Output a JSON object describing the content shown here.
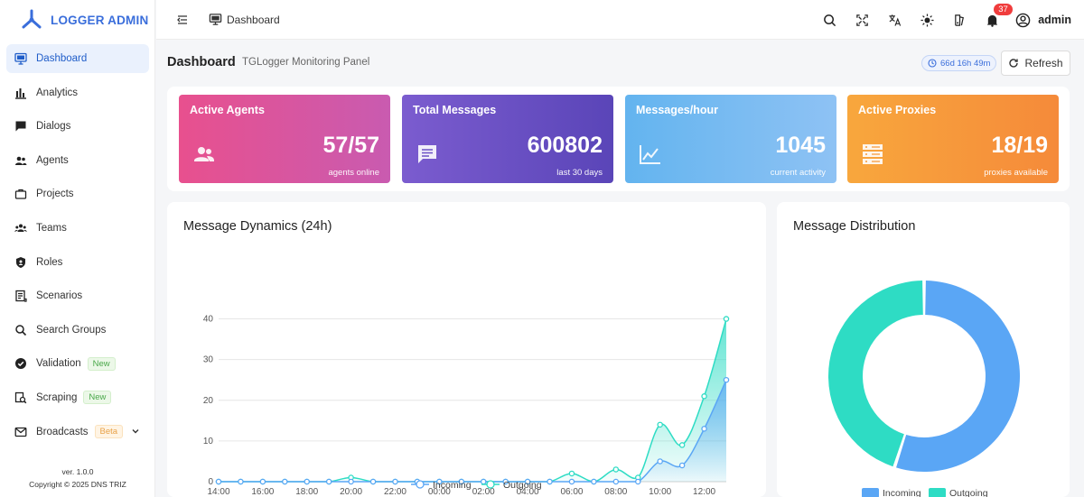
{
  "app": {
    "title": "LOGGER ADMIN",
    "version": "ver. 1.0.0",
    "copyright": "Copyright © 2025 DNS TRIZ"
  },
  "sidebar": {
    "items": [
      {
        "label": "Dashboard",
        "icon": "monitor-icon",
        "active": true
      },
      {
        "label": "Analytics",
        "icon": "bar-chart-icon"
      },
      {
        "label": "Dialogs",
        "icon": "chat-icon"
      },
      {
        "label": "Agents",
        "icon": "users-icon"
      },
      {
        "label": "Projects",
        "icon": "briefcase-icon"
      },
      {
        "label": "Teams",
        "icon": "team-icon"
      },
      {
        "label": "Roles",
        "icon": "shield-icon"
      },
      {
        "label": "Scenarios",
        "icon": "scenario-icon"
      },
      {
        "label": "Search Groups",
        "icon": "search-icon"
      },
      {
        "label": "Validation",
        "icon": "check-badge-icon",
        "tag": "New"
      },
      {
        "label": "Scraping",
        "icon": "scrape-icon",
        "tag": "New"
      },
      {
        "label": "Broadcasts",
        "icon": "mail-icon",
        "tag": "Beta"
      }
    ]
  },
  "topbar": {
    "breadcrumb": "Dashboard",
    "notifications_count": "37",
    "username": "admin"
  },
  "header": {
    "title": "Dashboard",
    "subtitle": "TGLogger Monitoring Panel",
    "uptime": "66d 16h 49m",
    "refresh_label": "Refresh"
  },
  "stats": [
    {
      "title": "Active Agents",
      "value": "57/57",
      "sub": "agents online",
      "icon": "agents-icon",
      "color_from": "#e8508e",
      "color_to": "#c95bb0"
    },
    {
      "title": "Total Messages",
      "value": "600802",
      "sub": "last 30 days",
      "icon": "message-icon",
      "color_from": "#7b5ccf",
      "color_to": "#5a45b8"
    },
    {
      "title": "Messages/hour",
      "value": "1045",
      "sub": "current activity",
      "icon": "trend-icon",
      "color_from": "#63b4ef",
      "color_to": "#8ec2f4"
    },
    {
      "title": "Active Proxies",
      "value": "18/19",
      "sub": "proxies available",
      "icon": "server-icon",
      "color_from": "#f8a73d",
      "color_to": "#f58a3a"
    }
  ],
  "line_panel": {
    "title": "Message Dynamics (24h)"
  },
  "pie_panel": {
    "title": "Message Distribution"
  },
  "colors": {
    "accent": "#3a6edb",
    "incoming": "#5aa6f5",
    "outgoing": "#2edcc4"
  },
  "chart_data": [
    {
      "type": "area",
      "title": "Message Dynamics (24h)",
      "x": [
        "14:00",
        "15:00",
        "16:00",
        "17:00",
        "18:00",
        "19:00",
        "20:00",
        "21:00",
        "22:00",
        "23:00",
        "00:00",
        "01:00",
        "02:00",
        "03:00",
        "04:00",
        "05:00",
        "06:00",
        "07:00",
        "08:00",
        "09:00",
        "10:00",
        "11:00",
        "12:00",
        "13:00"
      ],
      "x_tick_labels": [
        "14:00",
        "16:00",
        "18:00",
        "20:00",
        "22:00",
        "00:00",
        "02:00",
        "04:00",
        "06:00",
        "08:00",
        "10:00",
        "12:00"
      ],
      "ylim": [
        0,
        45
      ],
      "y_ticks": [
        0,
        10,
        20,
        30,
        40
      ],
      "grid": true,
      "legend": "bottom",
      "series": [
        {
          "name": "Incoming",
          "values": [
            0,
            0,
            0,
            0,
            0,
            0,
            0,
            0,
            0,
            0,
            0,
            0,
            0,
            0,
            0,
            0,
            0,
            0,
            0,
            0,
            5,
            4,
            13,
            25
          ]
        },
        {
          "name": "Outgoing",
          "values": [
            0,
            0,
            0,
            0,
            0,
            0,
            1,
            0,
            0,
            0,
            0,
            0,
            0,
            0,
            0,
            0,
            2,
            0,
            3,
            1,
            14,
            9,
            21,
            40
          ]
        }
      ]
    },
    {
      "type": "pie",
      "title": "Message Distribution",
      "donut": true,
      "legend": "bottom",
      "slices": [
        {
          "name": "Incoming",
          "value": 55
        },
        {
          "name": "Outgoing",
          "value": 45
        }
      ]
    }
  ]
}
